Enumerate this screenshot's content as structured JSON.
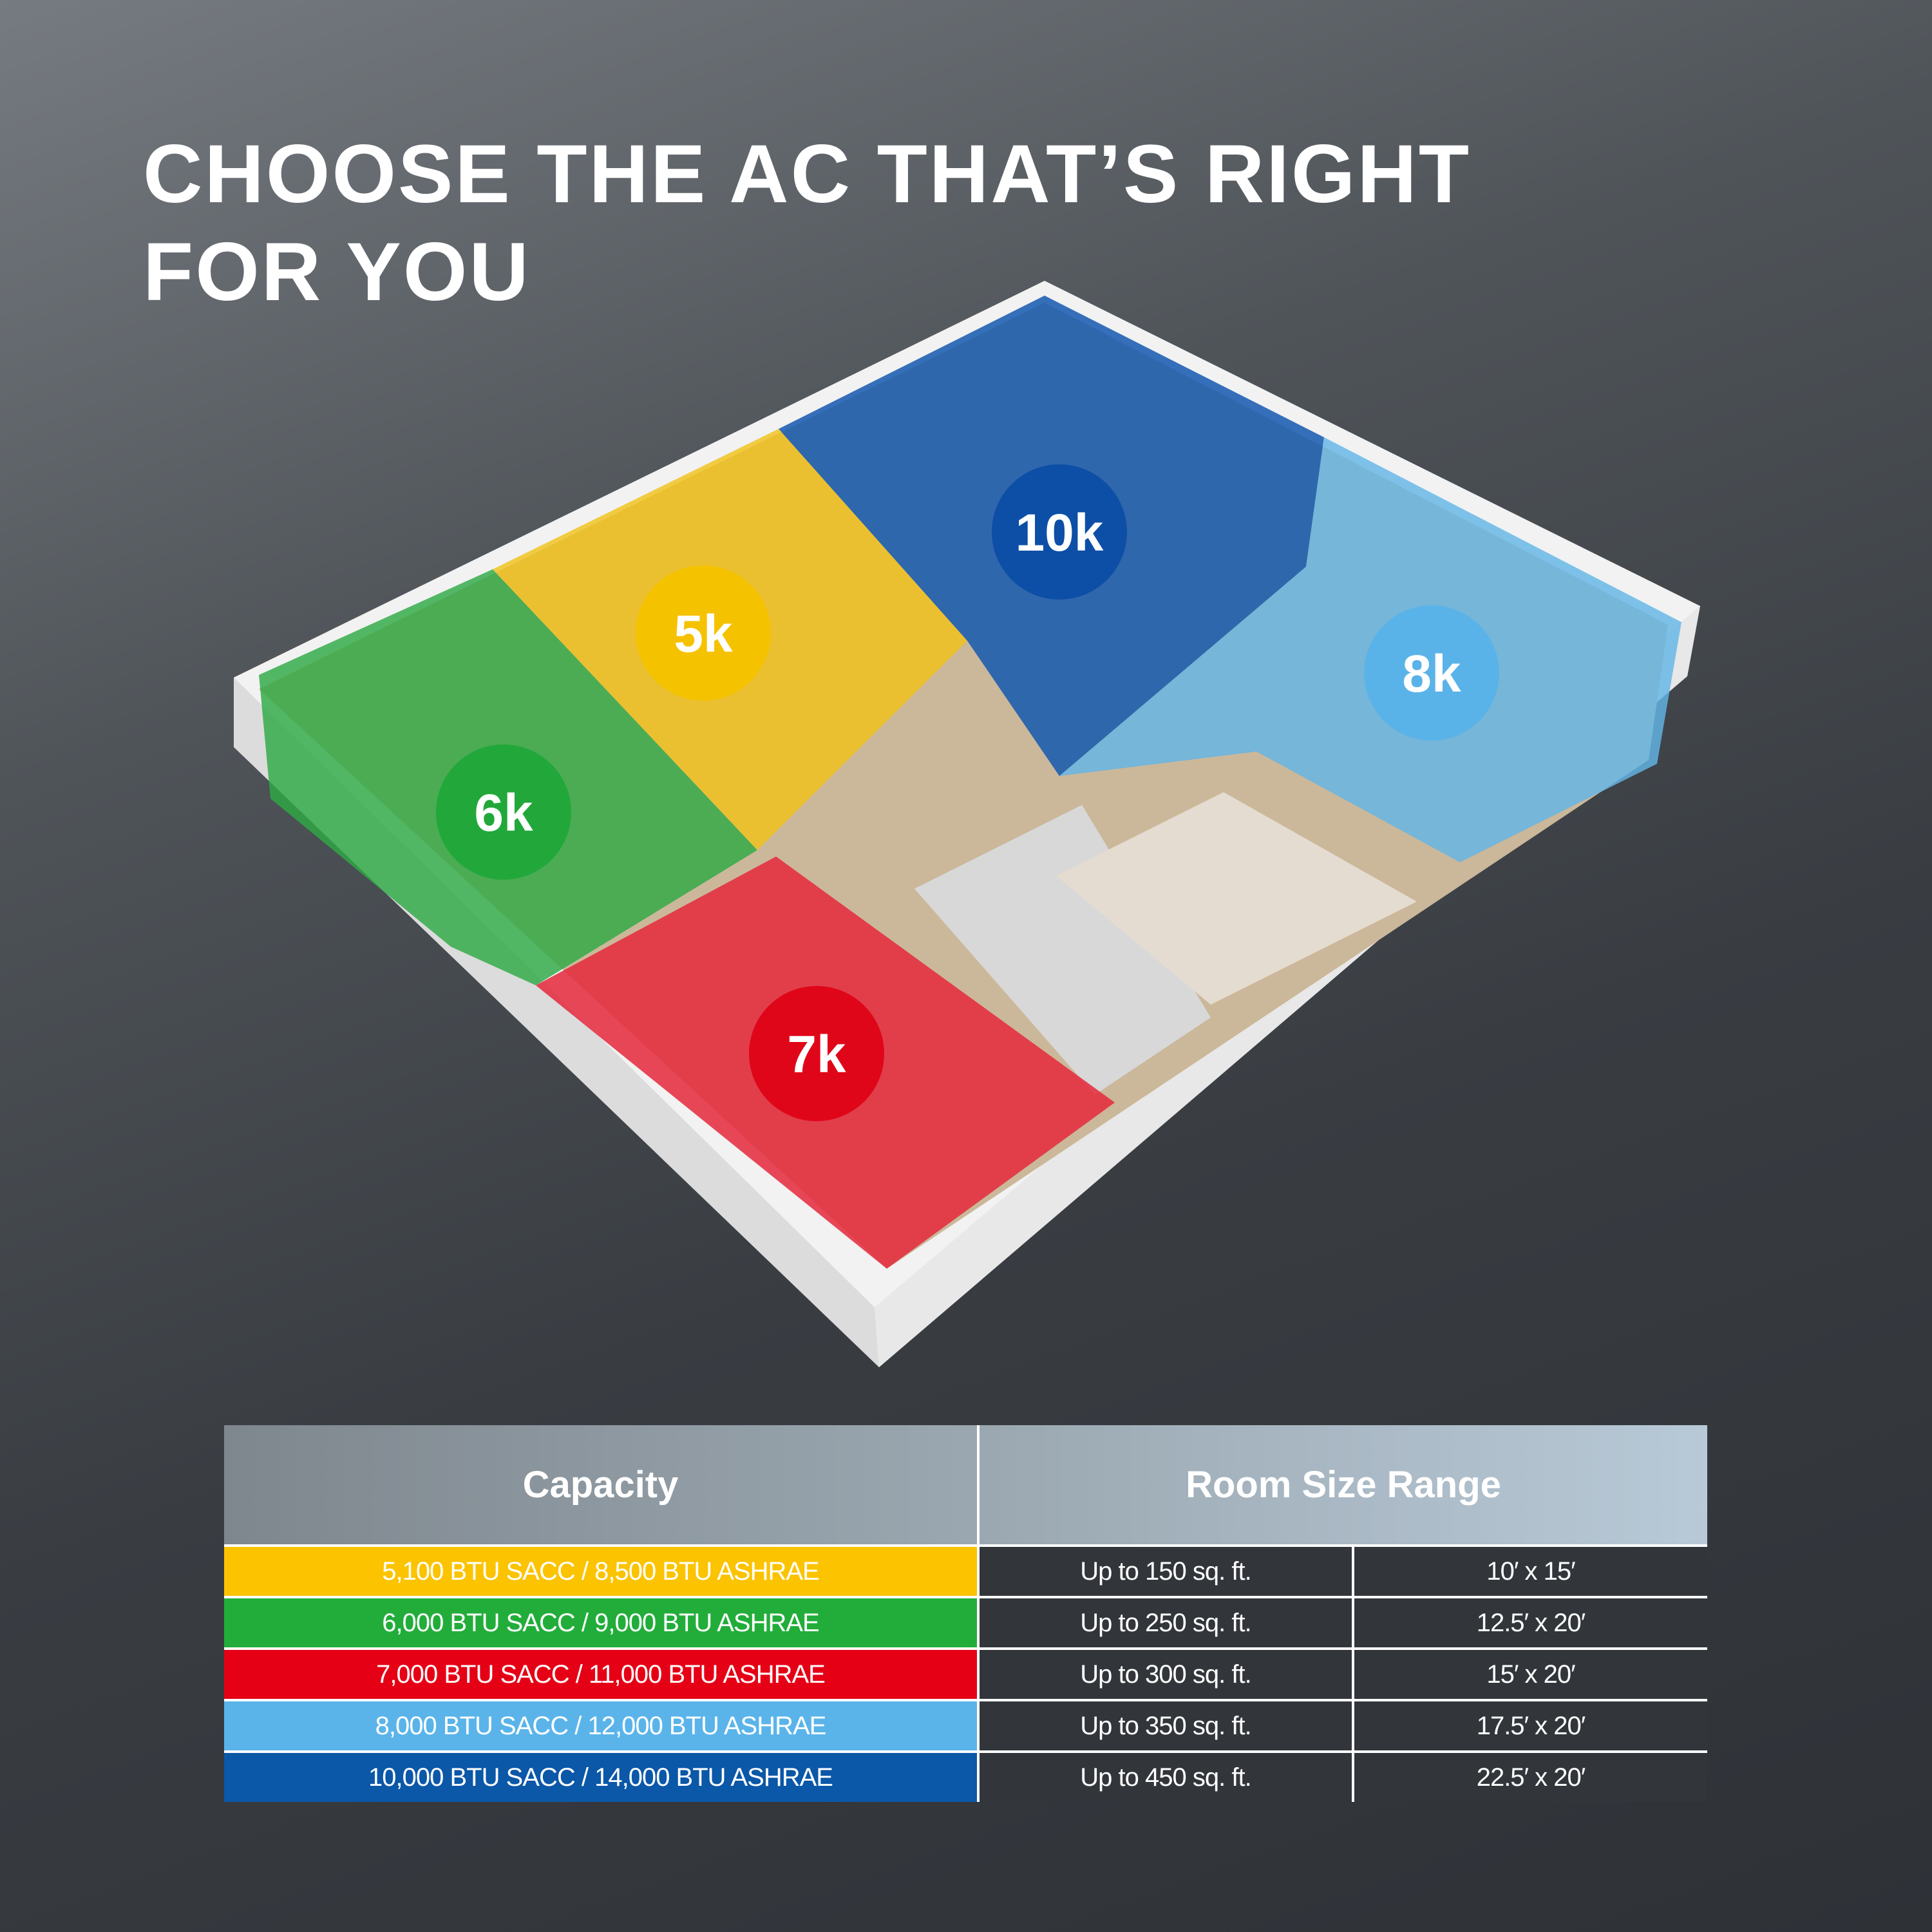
{
  "title": {
    "line1": "CHOOSE THE AC THAT’S RIGHT",
    "line2": "FOR YOU"
  },
  "badges": [
    {
      "label": "10k",
      "color": "#0d4fa6"
    },
    {
      "label": "5k",
      "color": "#f5c200"
    },
    {
      "label": "6k",
      "color": "#22a83a"
    },
    {
      "label": "8k",
      "color": "#5ab3e8"
    },
    {
      "label": "7k",
      "color": "#e0061a"
    }
  ],
  "table": {
    "headers": {
      "capacity": "Capacity",
      "room_size": "Room Size Range"
    },
    "rows": [
      {
        "capacity": "5,100 BTU SACC / 8,500 BTU ASHRAE",
        "area": "Up to 150 sq. ft.",
        "dimensions": "10′ x 15′",
        "color": "#fbc300"
      },
      {
        "capacity": "6,000 BTU SACC / 9,000 BTU ASHRAE",
        "area": "Up to 250 sq. ft.",
        "dimensions": "12.5′ x 20′",
        "color": "#22ad3a"
      },
      {
        "capacity": "7,000 BTU SACC / 11,000 BTU ASHRAE",
        "area": "Up to 300 sq. ft.",
        "dimensions": "15′ x 20′",
        "color": "#e50015"
      },
      {
        "capacity": "8,000 BTU SACC / 12,000 BTU ASHRAE",
        "area": "Up to 350 sq. ft.",
        "dimensions": "17.5′ x 20′",
        "color": "#5ab4ea"
      },
      {
        "capacity": "10,000 BTU SACC / 14,000 BTU ASHRAE",
        "area": "Up to 450 sq. ft.",
        "dimensions": "22.5′ x 20′",
        "color": "#0b57a8"
      }
    ]
  }
}
